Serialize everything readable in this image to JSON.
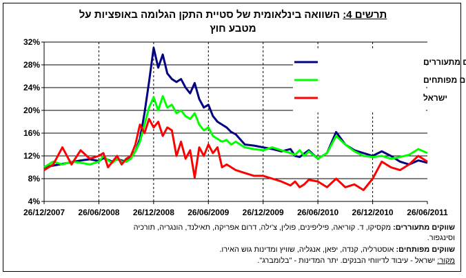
{
  "title": {
    "label": "תרשים 4:",
    "line1": "השוואה בינלאומית של סטיית התקן הגלומה באופציות על",
    "line2": "מטבע חוץ"
  },
  "notes": {
    "emerging_label": "שווקים מתעוררים:",
    "emerging_text": "מקסיקו, ד. קוריאה, פיליפינים, פולין, צ'ילה, דרום אפריקה, תאילנד, הונגריה, תורכיה",
    "emerging_text2": "וסינגפור.",
    "developed_label": "שווקים מפותחים:",
    "developed_text": "אוסטרליה, קנדה, יפאן, אנגליה, שוויץ ומדינות גוש האירו.",
    "source_label": "מקור:",
    "source_text": "ישראל - עיבוד לדיווחי הבנקים. יתר המדינות - \"בלומברג\"."
  },
  "chart_data": {
    "type": "line",
    "x_tick_labels": [
      "26/12/2007",
      "26/06/2008",
      "26/12/2008",
      "26/06/2009",
      "26/12/2009",
      "26/06/2010",
      "26/12/2010",
      "26/06/2011"
    ],
    "y_tick_labels": [
      "4%",
      "8%",
      "12%",
      "16%",
      "20%",
      "24%",
      "28%",
      "32%"
    ],
    "ylim": [
      4,
      32
    ],
    "xlim": [
      0,
      42
    ],
    "x_unit": "months since 26/12/2007",
    "grid": "horizontal solid, vertical dashed",
    "legend_placement": "top-right",
    "series": [
      {
        "name": "ממוצע שווקים מתעוררים",
        "color": "#000080",
        "x": [
          0,
          1,
          2,
          3,
          4,
          5,
          6,
          6.5,
          7,
          7.5,
          8,
          8.5,
          9,
          9.5,
          10,
          10.5,
          11,
          11.5,
          12,
          12.5,
          13,
          13.5,
          14,
          14.5,
          15,
          15.5,
          16,
          16.5,
          17,
          17.5,
          18,
          18.5,
          19,
          19.5,
          20,
          20.5,
          21,
          22,
          23,
          24,
          25,
          26,
          27,
          27.5,
          28,
          28.5,
          29,
          30,
          31,
          32,
          33,
          34,
          35,
          36,
          37,
          38,
          39,
          40,
          41,
          42
        ],
        "y": [
          10.0,
          10.3,
          10.6,
          10.9,
          11.2,
          11.4,
          11.1,
          11.6,
          11.3,
          11.0,
          11.4,
          11.2,
          11.0,
          11.9,
          12.8,
          15.0,
          19.5,
          25.0,
          31.0,
          27.5,
          29.8,
          26.5,
          25.5,
          25.0,
          25.5,
          24.0,
          23.0,
          24.8,
          22.0,
          20.5,
          21.0,
          19.0,
          18.0,
          17.5,
          17.0,
          16.2,
          15.8,
          14.0,
          13.8,
          13.5,
          13.2,
          12.8,
          13.2,
          12.0,
          11.8,
          12.4,
          13.0,
          11.5,
          12.5,
          16.2,
          14.0,
          13.0,
          12.5,
          12.0,
          12.8,
          12.0,
          11.0,
          10.5,
          11.2,
          10.8
        ]
      },
      {
        "name": "ממוצע שווקים מפותחים",
        "color": "#00ff00",
        "x": [
          0,
          1,
          2,
          3,
          4,
          5,
          6,
          6.5,
          7,
          7.5,
          8,
          8.5,
          9,
          9.5,
          10,
          10.5,
          11,
          11.5,
          12,
          12.5,
          13,
          13.5,
          14,
          14.5,
          15,
          15.5,
          16,
          16.5,
          17,
          17.5,
          18,
          18.5,
          19,
          19.5,
          20,
          20.5,
          21,
          22,
          23,
          24,
          25,
          26,
          27,
          27.5,
          28,
          28.5,
          29,
          30,
          31,
          32,
          33,
          34,
          35,
          36,
          37,
          38,
          39,
          40,
          41,
          42
        ],
        "y": [
          10.0,
          11.0,
          10.5,
          11.0,
          10.8,
          10.5,
          11.0,
          12.0,
          11.2,
          10.8,
          11.5,
          11.0,
          11.0,
          11.5,
          12.8,
          14.5,
          17.5,
          20.5,
          22.3,
          20.0,
          22.5,
          20.5,
          21.0,
          19.5,
          20.0,
          19.0,
          18.5,
          19.5,
          17.5,
          16.5,
          17.0,
          15.5,
          15.0,
          14.5,
          14.8,
          14.0,
          14.5,
          13.5,
          13.2,
          13.0,
          13.5,
          13.0,
          12.5,
          12.2,
          13.0,
          12.0,
          12.8,
          11.5,
          12.5,
          15.5,
          14.0,
          12.8,
          12.0,
          11.8,
          12.0,
          11.5,
          11.8,
          12.2,
          13.2,
          12.5
        ]
      },
      {
        "name": "ישראל",
        "color": "#ff0000",
        "x": [
          0,
          1,
          2,
          3,
          4,
          5,
          6,
          6.5,
          7,
          7.5,
          8,
          8.5,
          9,
          9.5,
          10,
          10.5,
          11,
          11.5,
          12,
          12.5,
          13,
          13.5,
          14,
          14.5,
          15,
          15.5,
          16,
          16.5,
          17,
          17.5,
          18,
          18.5,
          19,
          19.5,
          20,
          20.5,
          21,
          22,
          23,
          24,
          25,
          26,
          27,
          27.5,
          28,
          28.5,
          29,
          30,
          31,
          32,
          33,
          34,
          35,
          36,
          37,
          38,
          39,
          40,
          41,
          42
        ],
        "y": [
          9.5,
          10.5,
          13.5,
          10.5,
          13.0,
          11.5,
          12.0,
          12.5,
          10.0,
          11.0,
          12.0,
          10.5,
          11.5,
          12.0,
          14.0,
          17.5,
          16.0,
          18.5,
          17.0,
          18.0,
          15.5,
          17.0,
          16.5,
          12.0,
          14.5,
          11.5,
          13.0,
          8.2,
          13.5,
          12.0,
          14.0,
          12.5,
          13.5,
          10.0,
          10.5,
          10.0,
          9.5,
          9.0,
          8.5,
          8.5,
          8.0,
          7.5,
          6.8,
          7.5,
          6.5,
          7.0,
          7.8,
          7.5,
          6.5,
          8.0,
          6.5,
          7.0,
          6.0,
          8.0,
          11.0,
          10.0,
          9.5,
          10.5,
          12.0,
          11.0
        ]
      }
    ]
  }
}
